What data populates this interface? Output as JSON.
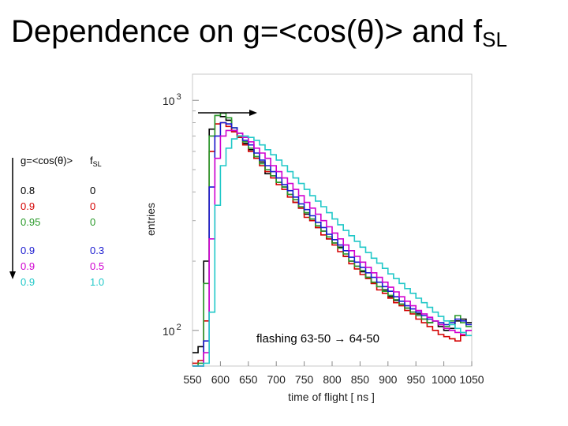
{
  "slide": {
    "title_main": "Dependence on g=<cos(θ)> and f",
    "title_sub": "SL"
  },
  "legend_table": {
    "header_g": "g=<cos(θ)>",
    "header_f_main": "f",
    "header_f_sub": "SL",
    "rows": [
      {
        "g": "0.8",
        "f": "0",
        "color": "#000000"
      },
      {
        "g": "0.9",
        "f": "0",
        "color": "#d40000"
      },
      {
        "g": "0.95",
        "f": "0",
        "color": "#2a9a2a"
      },
      {
        "g": "0.9",
        "f": "0.3",
        "color": "#1a1ad0"
      },
      {
        "g": "0.9",
        "f": "0.5",
        "color": "#d000d0"
      },
      {
        "g": "0.9",
        "f": "1.0",
        "color": "#20c8c8"
      }
    ]
  },
  "chart_data": {
    "type": "line",
    "style": "step histogram",
    "xlabel": "time of flight  [ ns ]",
    "ylabel": "entries",
    "xlim": [
      550,
      1050
    ],
    "ylim": [
      70,
      1300
    ],
    "yscale": "log",
    "x_ticks": [
      550,
      600,
      650,
      700,
      750,
      800,
      850,
      900,
      950,
      1000,
      1050
    ],
    "x_tick_labels": [
      "550",
      "600",
      "650",
      "700",
      "750",
      "800",
      "850",
      "900",
      "950",
      "1000",
      "1050"
    ],
    "y_ticks": [
      {
        "value": 1000,
        "base": "10",
        "exp": "3"
      },
      {
        "value": 100,
        "base": "10",
        "exp": "2"
      }
    ],
    "annotation": "flashing 63-50 → 64-50",
    "x": [
      550,
      560,
      570,
      580,
      590,
      600,
      610,
      620,
      630,
      640,
      650,
      660,
      670,
      680,
      690,
      700,
      710,
      720,
      730,
      740,
      750,
      760,
      770,
      780,
      790,
      800,
      810,
      820,
      830,
      840,
      850,
      860,
      870,
      880,
      890,
      900,
      910,
      920,
      930,
      940,
      950,
      960,
      970,
      980,
      990,
      1000,
      1010,
      1020,
      1030,
      1040,
      1050
    ],
    "series": [
      {
        "name": "g=0.8, fSL=0",
        "color": "#000000",
        "values": [
          80,
          85,
          200,
          750,
          860,
          850,
          820,
          740,
          700,
          650,
          610,
          560,
          540,
          480,
          470,
          440,
          420,
          390,
          360,
          340,
          320,
          300,
          280,
          270,
          250,
          240,
          230,
          210,
          200,
          190,
          180,
          170,
          160,
          155,
          150,
          140,
          135,
          130,
          125,
          120,
          118,
          112,
          108,
          110,
          104,
          100,
          102,
          110,
          112,
          108,
          105
        ]
      },
      {
        "name": "g=0.9, fSL=0",
        "color": "#d40000",
        "values": [
          72,
          74,
          110,
          600,
          790,
          800,
          770,
          730,
          690,
          640,
          600,
          560,
          520,
          490,
          460,
          430,
          410,
          380,
          360,
          340,
          310,
          300,
          280,
          260,
          250,
          235,
          220,
          210,
          195,
          185,
          175,
          168,
          160,
          150,
          145,
          138,
          132,
          128,
          122,
          118,
          112,
          108,
          104,
          100,
          96,
          94,
          92,
          90,
          95,
          100,
          104
        ]
      },
      {
        "name": "g=0.95, fSL=0",
        "color": "#2a9a2a",
        "values": [
          70,
          72,
          160,
          700,
          860,
          880,
          840,
          760,
          720,
          660,
          620,
          570,
          530,
          500,
          470,
          440,
          420,
          390,
          370,
          345,
          325,
          305,
          285,
          270,
          255,
          240,
          228,
          215,
          200,
          190,
          182,
          170,
          162,
          155,
          148,
          142,
          136,
          130,
          125,
          120,
          116,
          112,
          108,
          110,
          106,
          104,
          110,
          116,
          108,
          104,
          100
        ]
      },
      {
        "name": "g=0.9, fSL=0.3",
        "color": "#1a1ad0",
        "values": [
          70,
          70,
          90,
          420,
          700,
          800,
          790,
          760,
          720,
          670,
          640,
          590,
          550,
          520,
          490,
          460,
          430,
          405,
          380,
          355,
          335,
          315,
          295,
          280,
          262,
          248,
          235,
          222,
          208,
          198,
          188,
          178,
          170,
          162,
          155,
          148,
          140,
          134,
          128,
          124,
          120,
          116,
          112,
          110,
          108,
          106,
          108,
          112,
          110,
          106,
          102
        ]
      },
      {
        "name": "g=0.9, fSL=0.5",
        "color": "#d000d0",
        "values": [
          70,
          70,
          80,
          250,
          560,
          700,
          740,
          740,
          720,
          690,
          660,
          620,
          590,
          560,
          520,
          490,
          460,
          435,
          410,
          385,
          360,
          340,
          320,
          300,
          282,
          265,
          250,
          235,
          222,
          210,
          198,
          188,
          178,
          170,
          162,
          154,
          147,
          140,
          134,
          128,
          122,
          118,
          114,
          110,
          106,
          102,
          100,
          98,
          96,
          100,
          104
        ]
      },
      {
        "name": "g=0.9, fSL=1.0",
        "color": "#20c8c8",
        "values": [
          70,
          70,
          72,
          120,
          350,
          520,
          620,
          680,
          700,
          700,
          690,
          670,
          640,
          610,
          580,
          550,
          520,
          490,
          460,
          435,
          410,
          385,
          365,
          345,
          325,
          305,
          288,
          272,
          258,
          244,
          230,
          218,
          206,
          196,
          186,
          176,
          168,
          160,
          152,
          145,
          138,
          132,
          126,
          120,
          115,
          110,
          106,
          102,
          98,
          95,
          92
        ]
      }
    ]
  }
}
